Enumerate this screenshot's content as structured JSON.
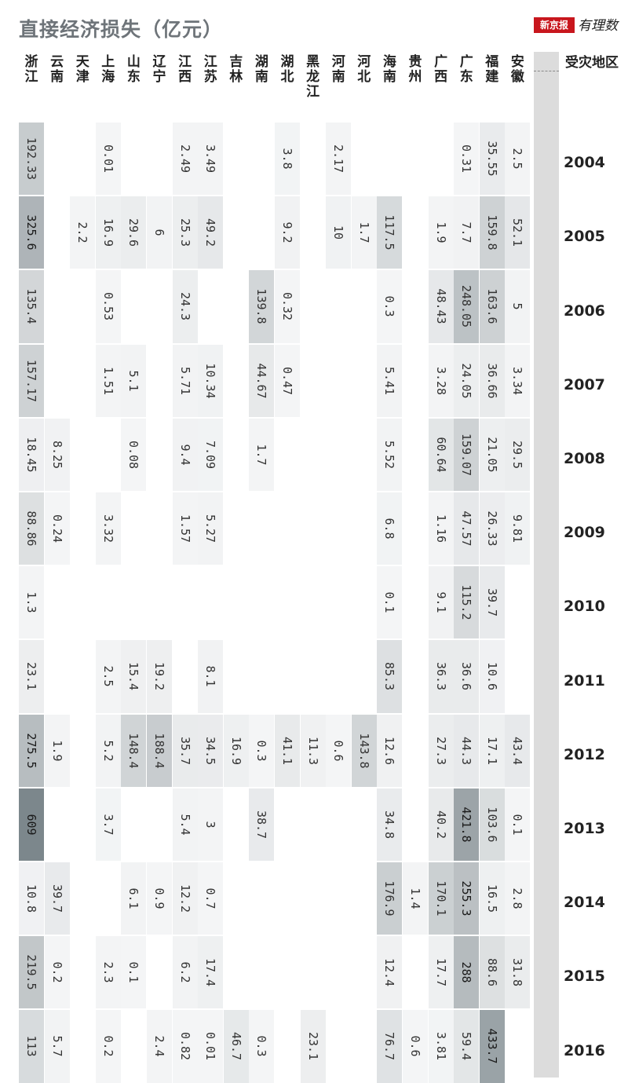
{
  "header": {
    "title": "直接经济损失（亿元）",
    "brand_box": "新京报",
    "brand_script": "有理数",
    "row_header": "受灾地区"
  },
  "chart_data": {
    "type": "heatmap",
    "title": "直接经济损失（亿元）",
    "row_header": "受灾地区",
    "columns": [
      "浙江",
      "云南",
      "天津",
      "上海",
      "山东",
      "辽宁",
      "江西",
      "江苏",
      "吉林",
      "湖南",
      "湖北",
      "黑龙江",
      "河南",
      "河北",
      "海南",
      "贵州",
      "广西",
      "广东",
      "福建",
      "安徽"
    ],
    "years": [
      "2004",
      "2005",
      "2006",
      "2007",
      "2008",
      "2009",
      "2010",
      "2011",
      "2012",
      "2013",
      "2014",
      "2015",
      "2016"
    ],
    "values": {
      "2004": [
        "192.33",
        null,
        null,
        "0.01",
        null,
        null,
        "2.49",
        "3.49",
        null,
        null,
        "3.8",
        null,
        "2.17",
        null,
        null,
        null,
        null,
        "0.31",
        "35.55",
        "2.5"
      ],
      "2005": [
        "325.6",
        null,
        "2.2",
        "16.9",
        "29.6",
        "6",
        "25.3",
        "49.2",
        null,
        null,
        "9.2",
        null,
        "10",
        "1.7",
        "117.5",
        null,
        "1.9",
        "7.7",
        "159.8",
        "52.1"
      ],
      "2006": [
        "135.4",
        null,
        null,
        "0.53",
        null,
        null,
        "24.3",
        null,
        null,
        "139.8",
        "0.32",
        null,
        null,
        null,
        "0.3",
        null,
        "48.43",
        "248.05",
        "163.6",
        "5"
      ],
      "2007": [
        "157.17",
        null,
        null,
        "1.51",
        "5.1",
        null,
        "5.71",
        "10.34",
        null,
        "44.67",
        "0.47",
        null,
        null,
        null,
        "5.41",
        null,
        "3.28",
        "24.05",
        "36.66",
        "3.34"
      ],
      "2008": [
        "18.45",
        "8.25",
        null,
        null,
        "0.08",
        null,
        "9.4",
        "7.09",
        null,
        "1.7",
        null,
        null,
        null,
        null,
        "5.52",
        null,
        "60.64",
        "159.07",
        "21.05",
        "29.5"
      ],
      "2009": [
        "88.86",
        "0.24",
        null,
        "3.32",
        null,
        null,
        "1.57",
        "5.27",
        null,
        null,
        null,
        null,
        null,
        null,
        "6.8",
        null,
        "1.16",
        "47.57",
        "26.33",
        "9.81"
      ],
      "2010": [
        "1.3",
        null,
        null,
        null,
        null,
        null,
        null,
        null,
        null,
        null,
        null,
        null,
        null,
        null,
        "0.1",
        null,
        "9.1",
        "115.2",
        "39.7",
        null
      ],
      "2011": [
        "23.1",
        null,
        null,
        "2.5",
        "15.4",
        "19.2",
        null,
        "8.1",
        null,
        null,
        null,
        null,
        null,
        null,
        "85.3",
        null,
        "36.3",
        "36.6",
        "10.6",
        null
      ],
      "2012": [
        "275.5",
        "1.9",
        null,
        "5.2",
        "148.4",
        "188.4",
        "35.7",
        "34.5",
        "16.9",
        "0.3",
        "41.1",
        "11.3",
        "0.6",
        "143.8",
        "12.6",
        null,
        "27.3",
        "44.3",
        "17.1",
        "43.4"
      ],
      "2013": [
        "609",
        null,
        null,
        "3.7",
        null,
        null,
        "5.4",
        "3",
        null,
        "38.7",
        null,
        null,
        null,
        null,
        "34.8",
        null,
        "40.2",
        "421.8",
        "103.6",
        "0.1"
      ],
      "2014": [
        "10.8",
        "39.7",
        null,
        null,
        "6.1",
        "0.9",
        "12.2",
        "0.7",
        null,
        null,
        null,
        null,
        null,
        null,
        "176.9",
        "1.4",
        "170.1",
        "255.3",
        "16.5",
        "2.8"
      ],
      "2015": [
        "219.5",
        "0.2",
        null,
        "2.3",
        "0.1",
        null,
        "6.2",
        "17.4",
        null,
        null,
        null,
        null,
        null,
        null,
        "12.4",
        null,
        "17.7",
        "288",
        "88.6",
        "31.8"
      ],
      "2016": [
        "113",
        "5.7",
        null,
        "0.2",
        null,
        "2.4",
        "0.82",
        "0.01",
        "46.7",
        "0.3",
        null,
        "23.1",
        null,
        null,
        "76.7",
        "0.6",
        "3.81",
        "59.4",
        "433.7",
        null
      ]
    },
    "color_scale": {
      "low": "#f4f5f6",
      "high": "#7c878c",
      "max_value": 609
    }
  }
}
